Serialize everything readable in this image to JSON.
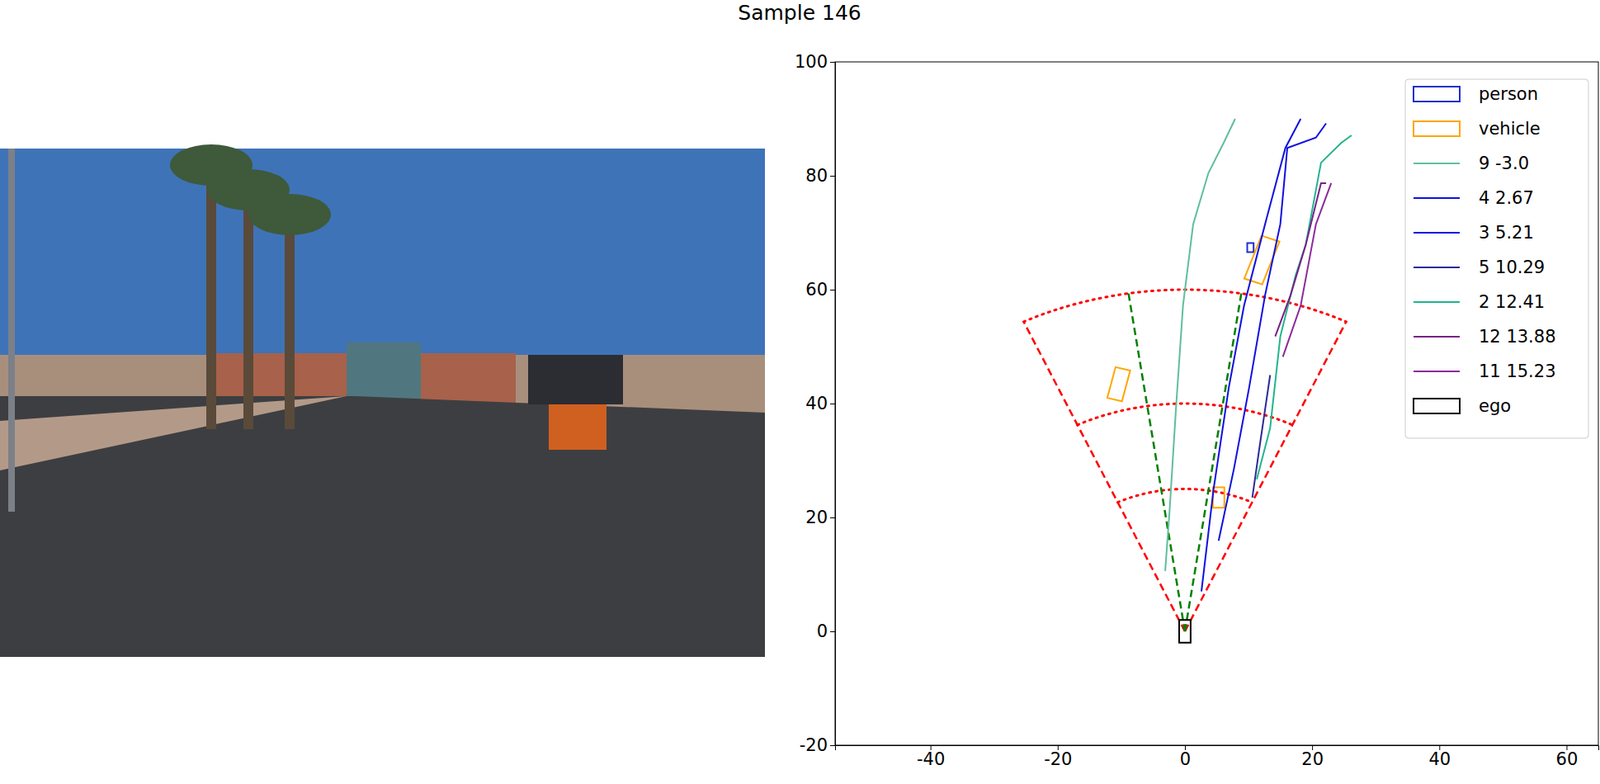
{
  "chart_data": {
    "type": "line",
    "title": "Sample 146",
    "xlim": [
      -55,
      65
    ],
    "ylim": [
      -20,
      100
    ],
    "xticks": [
      -40,
      -20,
      0,
      20,
      40,
      60
    ],
    "yticks": [
      -20,
      0,
      20,
      40,
      60,
      80,
      100
    ],
    "legend": "upper right",
    "sector": {
      "radii": [
        25,
        40,
        60
      ],
      "half_angle": 25,
      "inner_half_angle": 8.5,
      "color": "red",
      "inner_color": "green"
    },
    "series": [
      {
        "name": "person",
        "type": "box",
        "color": "#1f2fd0",
        "boxes": [
          {
            "x": [
              9.8,
              10.8,
              10.8,
              9.8
            ],
            "y": [
              66.6,
              66.6,
              68.2,
              68.2
            ]
          }
        ]
      },
      {
        "name": "vehicle",
        "type": "box",
        "color": "orange",
        "boxes": [
          {
            "x": [
              4.4,
              6.2,
              6.2,
              4.4
            ],
            "y": [
              21.7,
              21.7,
              25.3,
              25.3
            ]
          },
          {
            "x": [
              -12.2,
              -9.9,
              -8.6,
              -10.9
            ],
            "y": [
              41.0,
              40.4,
              45.8,
              46.4
            ]
          },
          {
            "x": [
              14.87,
              12.05,
              9.33,
              12.15
            ],
            "y": [
              68.45,
              69.47,
              61.95,
              60.93
            ]
          }
        ]
      },
      {
        "name": "9 -3.0",
        "type": "line",
        "color": "#5fbf9a",
        "x": [
          -3.1,
          -2.4,
          -1.4,
          -0.3,
          1.3,
          3.7,
          6.1,
          7.9
        ],
        "y": [
          10.6,
          21.3,
          39.2,
          57.2,
          71.5,
          80.5,
          85.8,
          90
        ]
      },
      {
        "name": "4 2.67",
        "type": "line",
        "color": "#1010e0",
        "x": [
          2.6,
          4.5,
          6.9,
          9.3,
          12.6,
          15.8,
          18.2
        ],
        "y": [
          7,
          24.9,
          42.8,
          57.2,
          71.5,
          84.9,
          90
        ]
      },
      {
        "name": "3 5.21",
        "type": "line",
        "color": "#1010e0",
        "x": [
          5.3,
          7.7,
          10.1,
          12.6,
          15,
          16.1,
          20.6,
          22.2
        ],
        "y": [
          15.9,
          28.5,
          42.8,
          59,
          71.5,
          84.9,
          86.7,
          89.2
        ]
      },
      {
        "name": "5 10.29",
        "type": "line",
        "color": "#2b2b9a",
        "x": [
          10.6,
          11.7,
          13.4
        ],
        "y": [
          23.5,
          32.1,
          45
        ]
      },
      {
        "name": "2 12.41",
        "type": "line",
        "color": "#21b58c",
        "x": [
          11.3,
          13.4,
          15,
          17.4,
          19,
          21.4,
          24.6,
          26.2
        ],
        "y": [
          26.7,
          35.7,
          51.8,
          62.5,
          67.9,
          82.3,
          85.8,
          87.1
        ]
      },
      {
        "name": "12 13.88",
        "type": "line",
        "color": "#7b2089",
        "x": [
          14.2,
          16.6,
          19,
          21.4,
          22.2
        ],
        "y": [
          51.8,
          59,
          67.9,
          78.7,
          78.7
        ]
      },
      {
        "name": "11 15.23",
        "type": "line",
        "color": "#8b2a9a",
        "x": [
          15.4,
          18.2,
          20.6,
          23
        ],
        "y": [
          48.2,
          57.2,
          71.5,
          78.7
        ]
      },
      {
        "name": "ego",
        "type": "box",
        "color": "black",
        "boxes": [
          {
            "x": [
              -0.9,
              0.9,
              0.9,
              -0.9
            ],
            "y": [
              -2,
              -2,
              2,
              2
            ]
          }
        ]
      }
    ]
  }
}
